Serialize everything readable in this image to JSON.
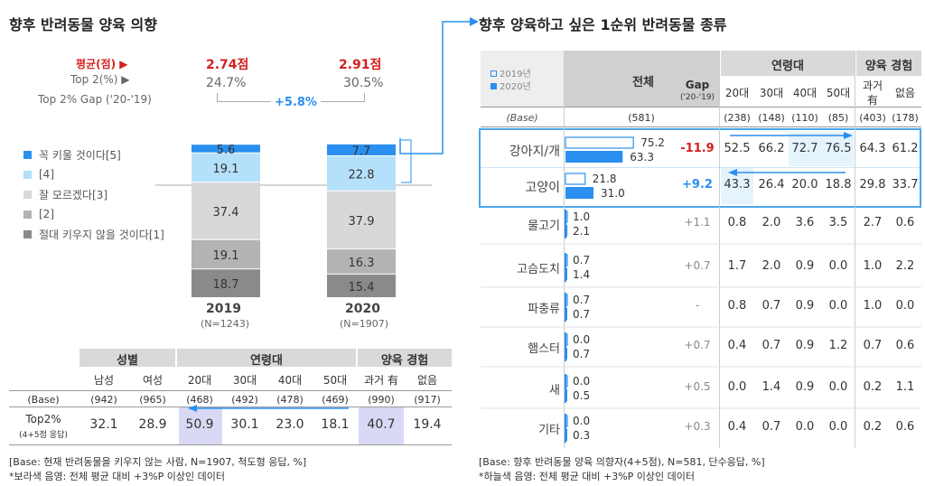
{
  "left": {
    "title": "향후 반려동물 양육 의향",
    "avg_label": "평균(점)",
    "top2_label": "Top 2(%)",
    "gap_label": "Top 2% Gap ('20-'19)",
    "avg_2019": "2.74점",
    "avg_2020": "2.91점",
    "top2_2019": "24.7%",
    "top2_2020": "30.5%",
    "gap_value": "+5.8%",
    "legend": [
      "꼭 키울 것이다[5]",
      "[4]",
      "잘 모르겠다[3]",
      "[2]",
      "절대 키우지 않을 것이다[1]"
    ],
    "colors": [
      "#2a8ff0",
      "#b5e0fb",
      "#d8d8d8",
      "#b3b3b3",
      "#8a8a8a"
    ],
    "year_2019": "2019",
    "year_2020": "2020",
    "n_2019": "(N=1243)",
    "n_2020": "(N=1907)",
    "table": {
      "group_gender": "성별",
      "group_age": "연령대",
      "group_exp": "양육 경험",
      "cols": [
        "남성",
        "여성",
        "20대",
        "30대",
        "40대",
        "50대",
        "과거 有",
        "없음"
      ],
      "base_label": "(Base)",
      "base": [
        "(942)",
        "(965)",
        "(468)",
        "(492)",
        "(478)",
        "(469)",
        "(990)",
        "(917)"
      ],
      "row_label": "Top2%",
      "row_sub": "(4+5점 응답)",
      "row": [
        "32.1",
        "28.9",
        "50.9",
        "30.1",
        "23.0",
        "18.1",
        "40.7",
        "19.4"
      ]
    },
    "note1": "[Base: 현재 반려동물을 키우지 않는 사람, N=1907, 척도형 응답, %]",
    "note2": "*보라색 음영: 전체 평균 대비 +3%P 이상인 데이터"
  },
  "chart_data": [
    {
      "type": "bar",
      "title": "향후 반려동물 양육 의향",
      "categories": [
        "2019",
        "2020"
      ],
      "series": [
        {
          "name": "꼭 키울 것이다[5]",
          "values": [
            5.6,
            7.7
          ]
        },
        {
          "name": "[4]",
          "values": [
            19.1,
            22.8
          ]
        },
        {
          "name": "잘 모르겠다[3]",
          "values": [
            37.4,
            37.9
          ]
        },
        {
          "name": "[2]",
          "values": [
            19.1,
            16.3
          ]
        },
        {
          "name": "절대 키우지 않을 것이다[1]",
          "values": [
            18.7,
            15.4
          ]
        }
      ]
    },
    {
      "type": "bar",
      "title": "향후 양육하고 싶은 1순위 반려동물 종류",
      "categories": [
        "강아지/개",
        "고양이",
        "물고기",
        "고슴도치",
        "파충류",
        "햄스터",
        "새",
        "기타"
      ],
      "series": [
        {
          "name": "2019년",
          "values": [
            75.2,
            21.8,
            1.0,
            0.7,
            0.7,
            0.0,
            0.0,
            0.0
          ]
        },
        {
          "name": "2020년",
          "values": [
            63.3,
            31.0,
            2.1,
            1.4,
            0.7,
            0.7,
            0.5,
            0.3
          ]
        }
      ]
    }
  ],
  "right": {
    "title": "향후 양육하고 싶은 1순위 반려동물 종류",
    "legend_2019": "2019년",
    "legend_2020": "2020년",
    "total_label": "전체",
    "gap_label": "Gap",
    "gap_sub": "('20-'19)",
    "group_age": "연령대",
    "group_exp": "양육 경험",
    "age_cols": [
      "20대",
      "30대",
      "40대",
      "50대"
    ],
    "exp_col1a": "과거",
    "exp_col1b": "有",
    "exp_col2": "없음",
    "base_label": "(Base)",
    "base_total": "(581)",
    "base": [
      "(238)",
      "(148)",
      "(110)",
      "(85)",
      "(403)",
      "(178)"
    ],
    "rows": [
      {
        "name": "강아지/개",
        "v2019": "75.2",
        "v2020": "63.3",
        "gap": "-11.9",
        "vals": [
          "52.5",
          "66.2",
          "72.7",
          "76.5",
          "64.3",
          "61.2"
        ]
      },
      {
        "name": "고양이",
        "v2019": "21.8",
        "v2020": "31.0",
        "gap": "+9.2",
        "vals": [
          "43.3",
          "26.4",
          "20.0",
          "18.8",
          "29.8",
          "33.7"
        ]
      },
      {
        "name": "물고기",
        "v2019": "1.0",
        "v2020": "2.1",
        "gap": "+1.1",
        "vals": [
          "0.8",
          "2.0",
          "3.6",
          "3.5",
          "2.7",
          "0.6"
        ]
      },
      {
        "name": "고슴도치",
        "v2019": "0.7",
        "v2020": "1.4",
        "gap": "+0.7",
        "vals": [
          "1.7",
          "2.0",
          "0.9",
          "0.0",
          "1.0",
          "2.2"
        ]
      },
      {
        "name": "파충류",
        "v2019": "0.7",
        "v2020": "0.7",
        "gap": "-",
        "vals": [
          "0.8",
          "0.7",
          "0.9",
          "0.0",
          "1.0",
          "0.0"
        ]
      },
      {
        "name": "햄스터",
        "v2019": "0.0",
        "v2020": "0.7",
        "gap": "+0.7",
        "vals": [
          "0.4",
          "0.7",
          "0.9",
          "1.2",
          "0.7",
          "0.6"
        ]
      },
      {
        "name": "새",
        "v2019": "0.0",
        "v2020": "0.5",
        "gap": "+0.5",
        "vals": [
          "0.0",
          "1.4",
          "0.9",
          "0.0",
          "0.2",
          "1.1"
        ]
      },
      {
        "name": "기타",
        "v2019": "0.0",
        "v2020": "0.3",
        "gap": "+0.3",
        "vals": [
          "0.4",
          "0.7",
          "0.0",
          "0.0",
          "0.2",
          "0.6"
        ]
      }
    ],
    "note1": "[Base: 향후 반려동물 양육 의향자(4+5점), N=581, 단수응답, %]",
    "note2": "*하늘색 음영: 전체 평균 대비 +3%P 이상인 데이터"
  }
}
